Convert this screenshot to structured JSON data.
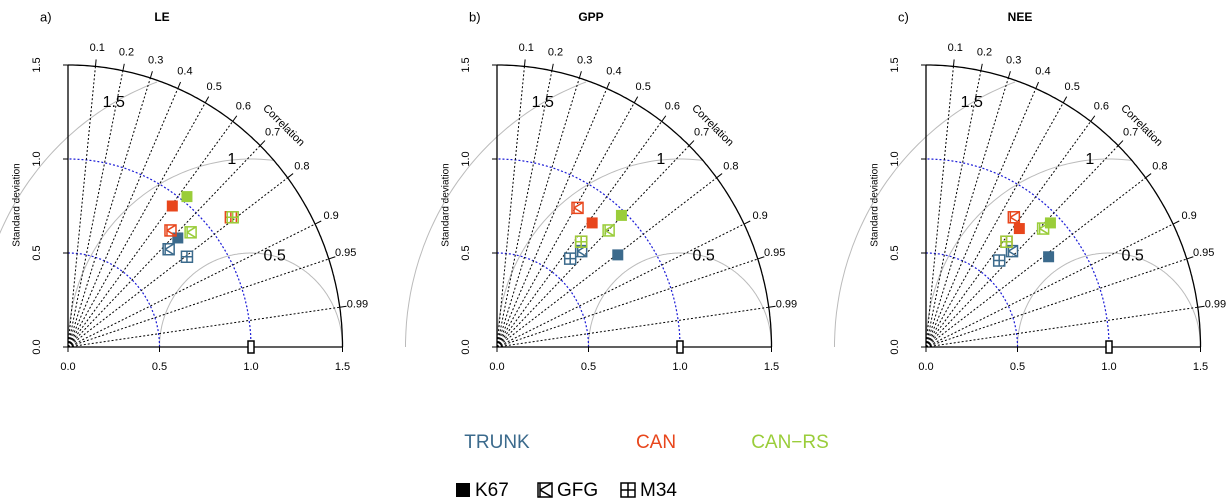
{
  "chart_data": [
    {
      "type": "taylor",
      "panel": "a)",
      "title": "LE",
      "ylabel": "Standard deviation",
      "corr_label": "Correlation",
      "xlim": [
        0,
        1.5
      ],
      "ylim": [
        0,
        1.5
      ],
      "xticks": [
        {
          "value": 0,
          "label": "0.0"
        },
        0.5,
        {
          "value": 1,
          "label": "1.0"
        },
        1.5
      ],
      "yticks": [
        {
          "value": 0,
          "label": "0.0"
        },
        0.5,
        {
          "value": 1,
          "label": "1.0"
        },
        1.5
      ],
      "corr_ticks": [
        0.1,
        0.2,
        0.3,
        0.4,
        0.5,
        0.6,
        0.7,
        0.8,
        0.9,
        0.95,
        0.99
      ],
      "rms_ticks": [
        0.5,
        1,
        1.5
      ],
      "sd_circles": [
        0.5,
        1
      ],
      "reference": 1,
      "series": [
        {
          "x": [
            0.6,
            0.55,
            0.65
          ],
          "y": [
            0.58,
            0.52,
            0.48
          ]
        },
        {
          "x": [
            0.57,
            0.56,
            0.89
          ],
          "y": [
            0.75,
            0.62,
            0.69
          ]
        },
        {
          "x": [
            0.65,
            0.67,
            0.9
          ],
          "y": [
            0.8,
            0.61,
            0.69
          ]
        }
      ]
    },
    {
      "type": "taylor",
      "panel": "b)",
      "title": "GPP",
      "ylabel": "Standard deviation",
      "corr_label": "Correlation",
      "xlim": [
        0,
        1.5
      ],
      "ylim": [
        0,
        1.5
      ],
      "xticks": [
        {
          "value": 0,
          "label": "0.0"
        },
        0.5,
        {
          "value": 1,
          "label": "1.0"
        },
        1.5
      ],
      "yticks": [
        {
          "value": 0,
          "label": "0.0"
        },
        0.5,
        {
          "value": 1,
          "label": "1.0"
        },
        1.5
      ],
      "corr_ticks": [
        0.1,
        0.2,
        0.3,
        0.4,
        0.5,
        0.6,
        0.7,
        0.8,
        0.9,
        0.95,
        0.99
      ],
      "rms_ticks": [
        0.5,
        1,
        1.5
      ],
      "sd_circles": [
        0.5,
        1
      ],
      "reference": 1,
      "series": [
        {
          "x": [
            0.66,
            0.46,
            0.4
          ],
          "y": [
            0.49,
            0.51,
            0.47
          ]
        },
        {
          "x": [
            0.52,
            0.44,
            0.46
          ],
          "y": [
            0.66,
            0.74,
            0.56
          ]
        },
        {
          "x": [
            0.68,
            0.61,
            0.46
          ],
          "y": [
            0.7,
            0.62,
            0.56
          ]
        }
      ]
    },
    {
      "type": "taylor",
      "panel": "c)",
      "title": "NEE",
      "ylabel": "Standard deviation",
      "corr_label": "Correlation",
      "xlim": [
        0,
        1.5
      ],
      "ylim": [
        0,
        1.5
      ],
      "xticks": [
        {
          "value": 0,
          "label": "0.0"
        },
        0.5,
        {
          "value": 1,
          "label": "1.0"
        },
        1.5
      ],
      "yticks": [
        {
          "value": 0,
          "label": "0.0"
        },
        0.5,
        {
          "value": 1,
          "label": "1.0"
        },
        1.5
      ],
      "corr_ticks": [
        0.1,
        0.2,
        0.3,
        0.4,
        0.5,
        0.6,
        0.7,
        0.8,
        0.9,
        0.95,
        0.99
      ],
      "rms_ticks": [
        0.5,
        1,
        1.5
      ],
      "sd_circles": [
        0.5,
        1
      ],
      "reference": 1,
      "series": [
        {
          "x": [
            0.67,
            0.47,
            0.4
          ],
          "y": [
            0.48,
            0.51,
            0.46
          ]
        },
        {
          "x": [
            0.51,
            0.48,
            0.44
          ],
          "y": [
            0.63,
            0.69,
            0.56
          ]
        },
        {
          "x": [
            0.68,
            0.64,
            0.44
          ],
          "y": [
            0.66,
            0.63,
            0.56
          ]
        }
      ]
    }
  ],
  "legend": {
    "series": [
      {
        "name": "TRUNK",
        "color": "#3b6a8c"
      },
      {
        "name": "CAN",
        "color": "#e8461c"
      },
      {
        "name": "CAN−RS",
        "color": "#9acd3a"
      }
    ],
    "markers": [
      "K67",
      "GFG",
      "M34"
    ]
  }
}
